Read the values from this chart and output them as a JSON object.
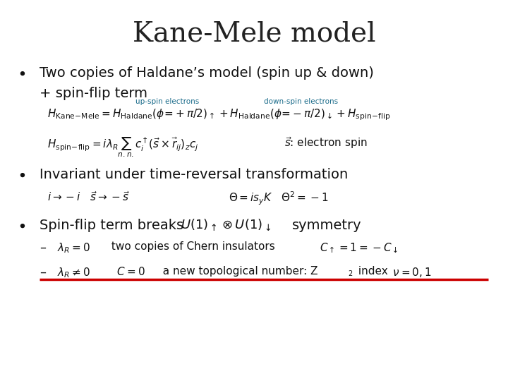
{
  "title": "Kane-Mele model",
  "title_fontsize": 28,
  "title_color": "#222222",
  "background_color": "#ffffff",
  "bullet1_text": "Two copies of Haldane’s model (spin up & down)\n+ spin-flip term",
  "bullet2_text": "Invariant under time-reversal transformation",
  "bullet3_text": "Spin-flip term breaks ",
  "bullet3_math": "$U(1)_{\\uparrow} \\otimes U(1)_{\\downarrow}$",
  "bullet3_end": " symmetry",
  "label_upsp": "up-spin electrons",
  "label_downsp": "down-spin electrons",
  "eq1": "$H_{\\mathrm{Kane\\text{-}Mele}} = H_{\\mathrm{Haldane}}(\\phi = +\\pi/2)_{\\uparrow} + H_{\\mathrm{Haldane}}(\\phi = -\\pi/2)_{\\downarrow} + H_{\\mathrm{spin\\text{-}flip}}$",
  "eq2": "$H_{\\mathrm{spin\\text{-}flip}} = i\\lambda_R \\sum_{n.n.} c_i^\\dagger (\\vec{s} \\times \\vec{r}_{ij})_z c_j$",
  "eq2_spin": "$\\vec{s}$: electron spin",
  "eq3a": "$i \\rightarrow -i \\quad \\vec{s} \\rightarrow -\\vec{s}$",
  "eq3b": "$\\Theta = is_y K \\quad \\Theta^2 = -1$",
  "sub1a": "$\\lambda_R = 0$",
  "sub1b": "  two copies of Chern insulators  ",
  "sub1c": "$C_{\\uparrow} = 1 = -C_{\\downarrow}$",
  "sub2a": "$\\lambda_R \\neq 0$",
  "sub2b": "  $C = 0$",
  "sub2c": "  a new topological number: Z",
  "sub2d": " index  $\\nu = 0, 1$",
  "underline_color": "#cc0000",
  "label_color": "#1a6b8a",
  "text_color": "#111111"
}
